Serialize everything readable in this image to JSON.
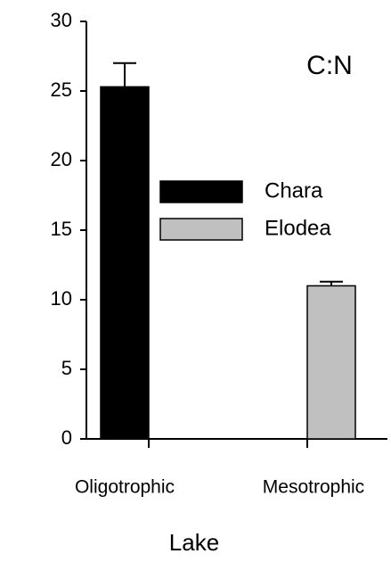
{
  "chart_data": {
    "type": "bar",
    "annotation": "C:N",
    "x_label": "Lake",
    "categories": [
      "Oligotrophic",
      "Mesotrophic"
    ],
    "series": [
      {
        "name": "Chara",
        "color": "#000000",
        "values": [
          25.3,
          null
        ],
        "errors": [
          1.7,
          null
        ]
      },
      {
        "name": "Elodea",
        "color": "#c0c0c0",
        "values": [
          null,
          11
        ],
        "errors": [
          null,
          0.3
        ]
      }
    ],
    "ylim": [
      0,
      30
    ],
    "yticks": [
      0,
      5,
      10,
      15,
      20,
      25,
      30
    ],
    "grid": false
  }
}
